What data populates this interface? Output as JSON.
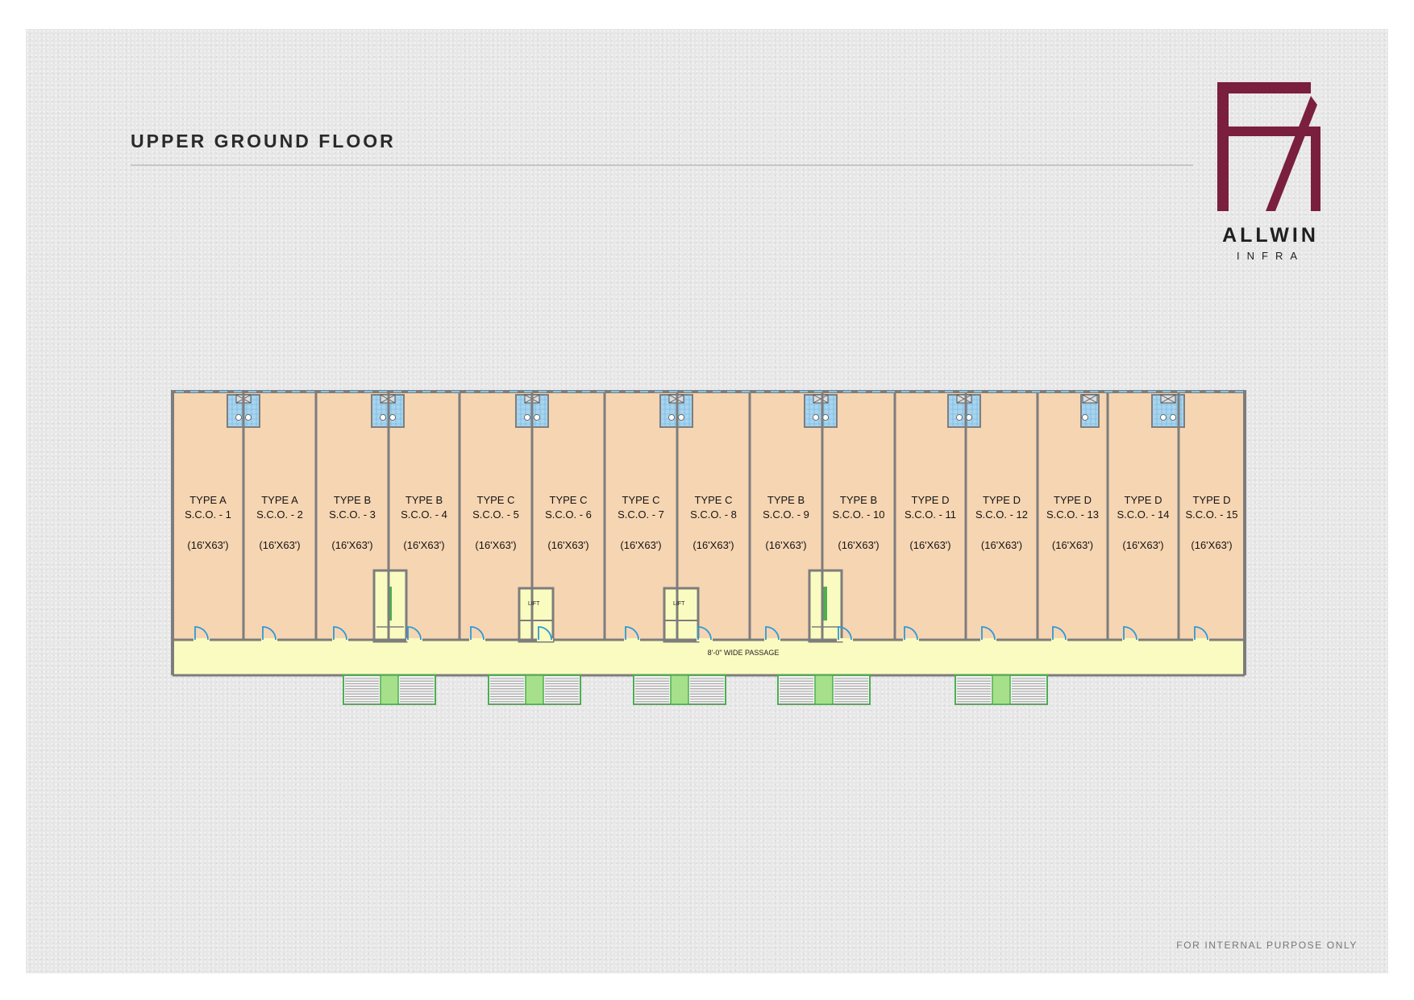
{
  "page": {
    "title": "UPPER GROUND FLOOR",
    "footer": "FOR INTERNAL PURPOSE ONLY"
  },
  "logo": {
    "brand": "ALLWIN",
    "sub": "INFRA",
    "color": "#7a1f3d"
  },
  "plan": {
    "colors": {
      "unit": "#f6d5b2",
      "wall": "#7d7d7d",
      "passage": "#fafbc0",
      "core": "#fafbc0",
      "stair_tread": "#4caf50",
      "stair_fill": "#a7e08a",
      "toilet": "#a8d4ee",
      "door": "#2f9ad6"
    },
    "passage_label": "8'-0\" WIDE  PASSAGE",
    "lift_label": "LIFT",
    "units": [
      {
        "type": "TYPE A",
        "name": "S.C.O. - 1",
        "size": "(16'X63')"
      },
      {
        "type": "TYPE A",
        "name": "S.C.O. - 2",
        "size": "(16'X63')"
      },
      {
        "type": "TYPE B",
        "name": "S.C.O. - 3",
        "size": "(16'X63')"
      },
      {
        "type": "TYPE B",
        "name": "S.C.O. - 4",
        "size": "(16'X63')"
      },
      {
        "type": "TYPE C",
        "name": "S.C.O. - 5",
        "size": "(16'X63')"
      },
      {
        "type": "TYPE C",
        "name": "S.C.O. - 6",
        "size": "(16'X63')"
      },
      {
        "type": "TYPE C",
        "name": "S.C.O. - 7",
        "size": "(16'X63')"
      },
      {
        "type": "TYPE C",
        "name": "S.C.O. - 8",
        "size": "(16'X63')"
      },
      {
        "type": "TYPE B",
        "name": "S.C.O. - 9",
        "size": "(16'X63')"
      },
      {
        "type": "TYPE B",
        "name": "S.C.O. - 10",
        "size": "(16'X63')"
      },
      {
        "type": "TYPE D",
        "name": "S.C.O. - 11",
        "size": "(16'X63')"
      },
      {
        "type": "TYPE D",
        "name": "S.C.O. - 12",
        "size": "(16'X63')"
      },
      {
        "type": "TYPE D",
        "name": "S.C.O. - 13",
        "size": "(16'X63')"
      },
      {
        "type": "TYPE D",
        "name": "S.C.O. - 14",
        "size": "(16'X63')"
      },
      {
        "type": "TYPE D",
        "name": "S.C.O. - 15",
        "size": "(16'X63')"
      }
    ]
  }
}
